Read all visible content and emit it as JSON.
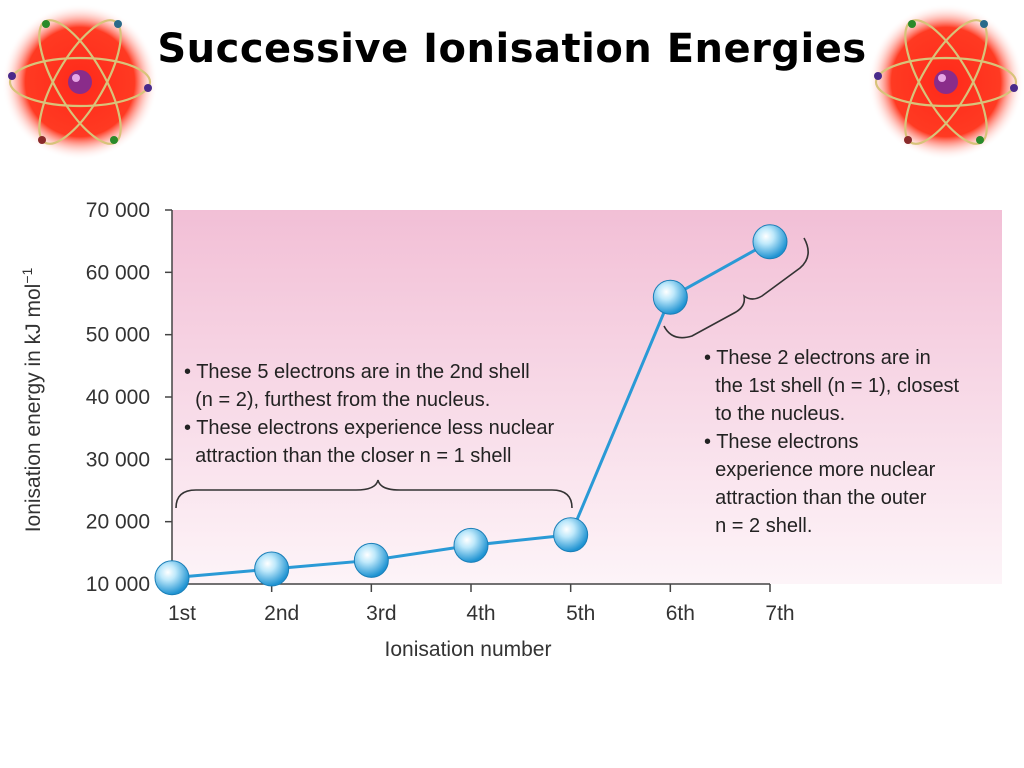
{
  "slide": {
    "title": "Successive Ionisation Energies",
    "decoration_icon": "atom-icon",
    "colors": {
      "background_glow": "#ff2a1a",
      "line": "#2a9ad6",
      "plot_top": "#f2bfd6",
      "plot_bottom": "#fdf4f8"
    }
  },
  "chart_data": {
    "type": "line",
    "title": "",
    "xlabel": "Ionisation number",
    "ylabel": "Ionisation energy in kJ mol",
    "ylabel_superscript": "−1",
    "categories": [
      "1st",
      "2nd",
      "3rd",
      "4th",
      "5th",
      "6th",
      "7th"
    ],
    "values": [
      11000,
      12400,
      13800,
      16200,
      17900,
      56000,
      64900
    ],
    "ylim": [
      10000,
      70000
    ],
    "yticks": [
      {
        "value": 10000,
        "label": "10 000"
      },
      {
        "value": 20000,
        "label": "20 000"
      },
      {
        "value": 30000,
        "label": "30 000"
      },
      {
        "value": 40000,
        "label": "40 000"
      },
      {
        "value": 50000,
        "label": "50 000"
      },
      {
        "value": 60000,
        "label": "60 000"
      },
      {
        "value": 70000,
        "label": "70 000"
      }
    ],
    "grid": false,
    "annotations": [
      {
        "name": "outer-shell-note",
        "lines": [
          "• These 5 electrons are in the 2nd shell",
          "  (n = 2), furthest from the nucleus.",
          "• These electrons experience less nuclear",
          "  attraction than the closer n = 1 shell"
        ]
      },
      {
        "name": "inner-shell-note",
        "lines": [
          "• These 2 electrons are in",
          "  the 1st shell (n = 1), closest",
          "  to the nucleus.",
          "• These electrons",
          "  experience more nuclear",
          "  attraction than the outer",
          "  n = 2 shell."
        ]
      }
    ]
  }
}
